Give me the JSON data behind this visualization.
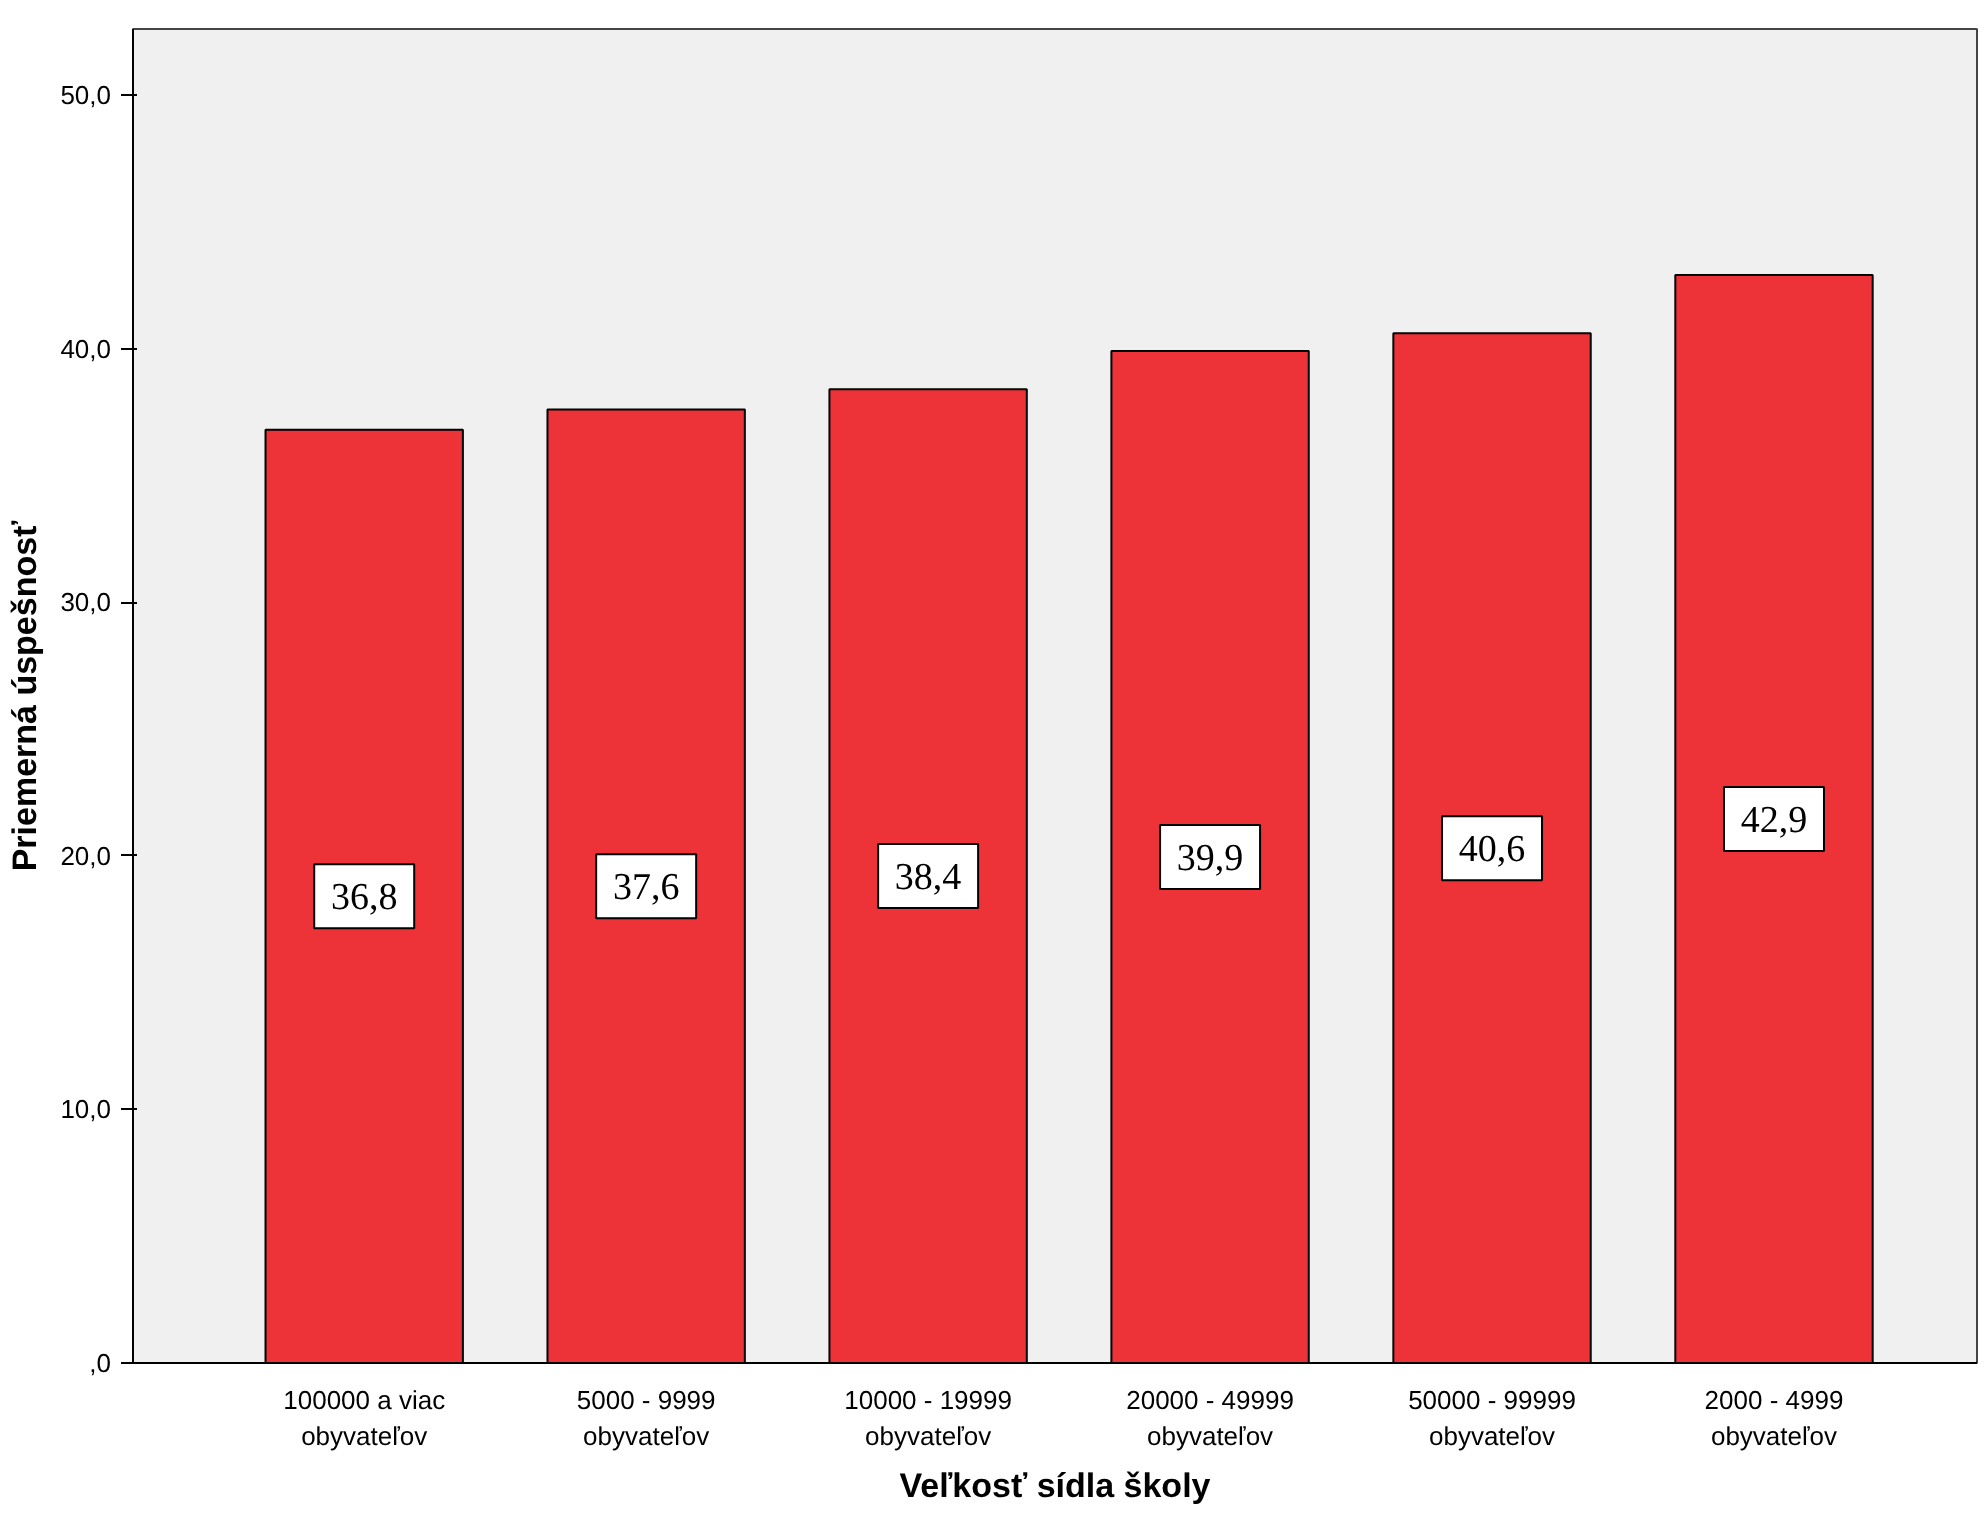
{
  "chart_data": {
    "type": "bar",
    "xlabel": "Veľkosť sídla školy",
    "ylabel": "Priemerná úspešnosť",
    "categories": [
      "100000 a viac\nobyvateľov",
      "5000 - 9999\nobyvateľov",
      "10000 - 19999\nobyvateľov",
      "20000 - 49999\nobyvateľov",
      "50000 - 99999\nobyvateľov",
      "2000 - 4999\nobyvateľov"
    ],
    "values": [
      36.8,
      37.6,
      38.4,
      39.9,
      40.6,
      42.9
    ],
    "value_labels": [
      "36,8",
      "37,6",
      "38,4",
      "39,9",
      "40,6",
      "42,9"
    ],
    "color": "#ee3338",
    "ylim": [
      0,
      52.6
    ],
    "yticks": [
      {
        "value": 0,
        "label": ",0"
      },
      {
        "value": 10,
        "label": "10,0"
      },
      {
        "value": 20,
        "label": "20,0"
      },
      {
        "value": 30,
        "label": "30,0"
      },
      {
        "value": 40,
        "label": "40,0"
      },
      {
        "value": 50,
        "label": "50,0"
      }
    ],
    "grid": false
  }
}
